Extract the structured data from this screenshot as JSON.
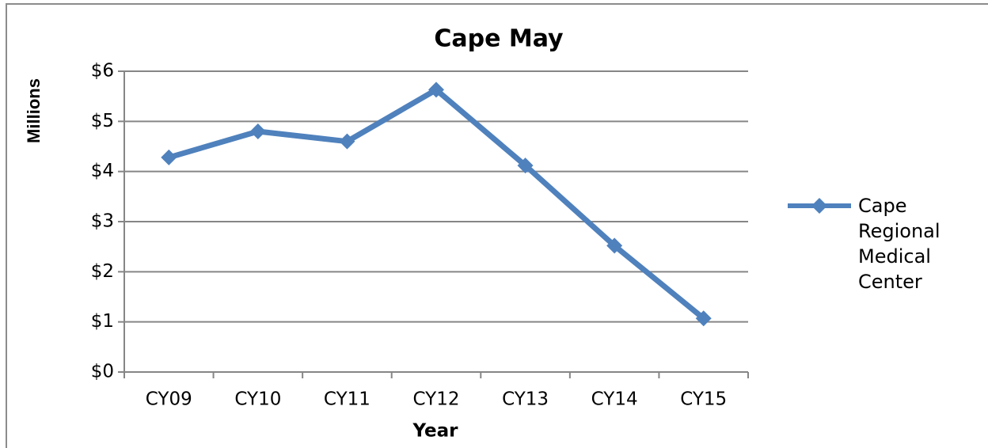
{
  "chart_data": {
    "type": "line",
    "title": "Cape May",
    "y_label": "Millions",
    "x_label": "Year",
    "categories": [
      "CY09",
      "CY10",
      "CY11",
      "CY12",
      "CY13",
      "CY14",
      "CY15"
    ],
    "series": [
      {
        "name": "Cape Regional Medical Center",
        "color": "#4f81bd",
        "values": [
          4.28,
          4.8,
          4.6,
          5.63,
          4.12,
          2.52,
          1.07
        ]
      }
    ],
    "ylim": [
      0,
      6
    ],
    "yticks": [
      {
        "value": 0,
        "label": "$0"
      },
      {
        "value": 1,
        "label": "$1"
      },
      {
        "value": 2,
        "label": "$2"
      },
      {
        "value": 3,
        "label": "$3"
      },
      {
        "value": 4,
        "label": "$4"
      },
      {
        "value": 5,
        "label": "$5"
      },
      {
        "value": 6,
        "label": "$6"
      }
    ],
    "grid": true,
    "legend": "right"
  }
}
